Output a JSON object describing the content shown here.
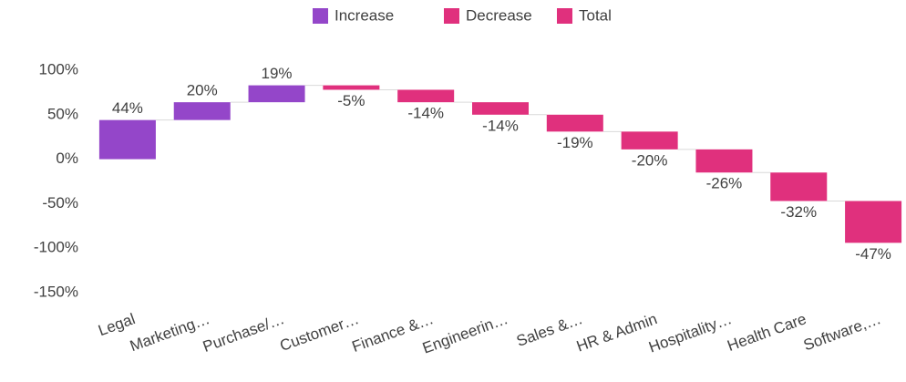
{
  "chart_data": {
    "type": "waterfall",
    "legend": [
      {
        "name": "Increase",
        "color": "#9446c9"
      },
      {
        "name": "Decrease",
        "color": "#e0307d"
      },
      {
        "name": "Total",
        "color": "#e0307d"
      }
    ],
    "categories": [
      "Legal",
      "Marketing…",
      "Purchase/…",
      "Customer…",
      "Finance &…",
      "Engineerin…",
      "Sales &…",
      "HR & Admin",
      "Hospitality…",
      "Health Care",
      "Software,…"
    ],
    "values": [
      44,
      20,
      19,
      -5,
      -14,
      -14,
      -19,
      -20,
      -26,
      -32,
      -47
    ],
    "value_labels": [
      "44%",
      "20%",
      "19%",
      "-5%",
      "-14%",
      "-14%",
      "-19%",
      "-20%",
      "-26%",
      "-32%",
      "-47%"
    ],
    "ylim": [
      -150,
      100
    ],
    "yticks": [
      {
        "value": -150,
        "label": "-150%"
      },
      {
        "value": -100,
        "label": "-100%"
      },
      {
        "value": -50,
        "label": "-50%"
      },
      {
        "value": 0,
        "label": "0%"
      },
      {
        "value": 50,
        "label": "50%"
      },
      {
        "value": 100,
        "label": "100%"
      }
    ],
    "grid": false
  }
}
